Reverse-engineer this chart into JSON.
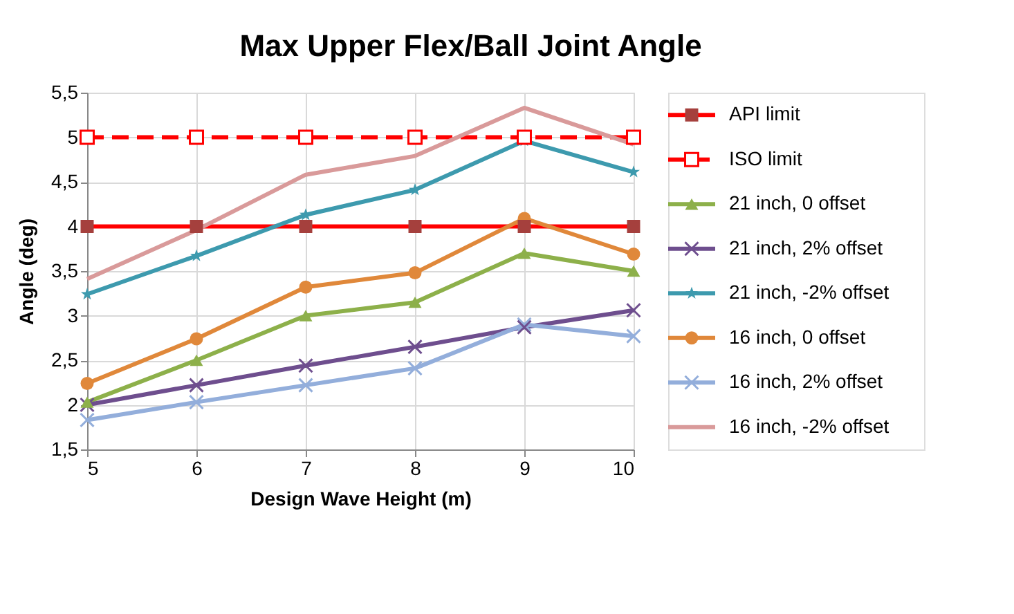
{
  "chart_data": {
    "type": "line",
    "title": "Max Upper Flex/Ball Joint Angle",
    "xlabel": "Design Wave Height (m)",
    "ylabel": "Angle (deg)",
    "x": [
      5,
      6,
      7,
      8,
      9,
      10
    ],
    "xlim": [
      5,
      10
    ],
    "xticks": [
      5,
      6,
      7,
      8,
      9,
      10
    ],
    "ylim": [
      1.5,
      5.5
    ],
    "yticks": [
      {
        "value": 1.5,
        "label": "1,5"
      },
      2,
      {
        "value": 2.5,
        "label": "2,5"
      },
      3,
      {
        "value": 3.5,
        "label": "3,5"
      },
      4,
      {
        "value": 4.5,
        "label": "4,5"
      },
      5,
      {
        "value": 5.5,
        "label": "5,5"
      }
    ],
    "grid": true,
    "legend": "right",
    "series": [
      {
        "name": "API limit",
        "color": "#ff0000",
        "marker": "square",
        "values": [
          4,
          4,
          4,
          4,
          4,
          4
        ]
      },
      {
        "name": "ISO limit",
        "color": "#ff0000",
        "marker": "square",
        "line_style": "dashed",
        "values": [
          5,
          5,
          5,
          5,
          5,
          5
        ]
      },
      {
        "name": "21 inch, 0 offset",
        "color": "#8db04a",
        "marker": "triangle",
        "values": [
          2.03,
          2.5,
          3.0,
          3.15,
          3.7,
          3.5
        ]
      },
      {
        "name": "21 inch, 2% offset",
        "color": "#6e4e8e",
        "marker": "cross",
        "values": [
          2.0,
          2.22,
          2.44,
          2.65,
          2.87,
          3.06
        ]
      },
      {
        "name": "21 inch, -2% offset",
        "color": "#3d9aae",
        "marker": "star",
        "values": [
          3.24,
          3.67,
          4.13,
          4.41,
          4.96,
          4.61
        ]
      },
      {
        "name": "16 inch, 0 offset",
        "color": "#e0883a",
        "marker": "circle",
        "values": [
          2.24,
          2.74,
          3.32,
          3.48,
          4.09,
          3.69
        ]
      },
      {
        "name": "16 inch, 2% offset",
        "color": "#93aedb",
        "marker": "cross",
        "values": [
          1.83,
          2.03,
          2.22,
          2.41,
          2.9,
          2.77
        ]
      },
      {
        "name": "16 inch, -2% offset",
        "color": "#d99a9a",
        "marker": "none",
        "values": [
          3.41,
          3.96,
          4.58,
          4.79,
          5.33,
          4.92
        ]
      }
    ]
  }
}
